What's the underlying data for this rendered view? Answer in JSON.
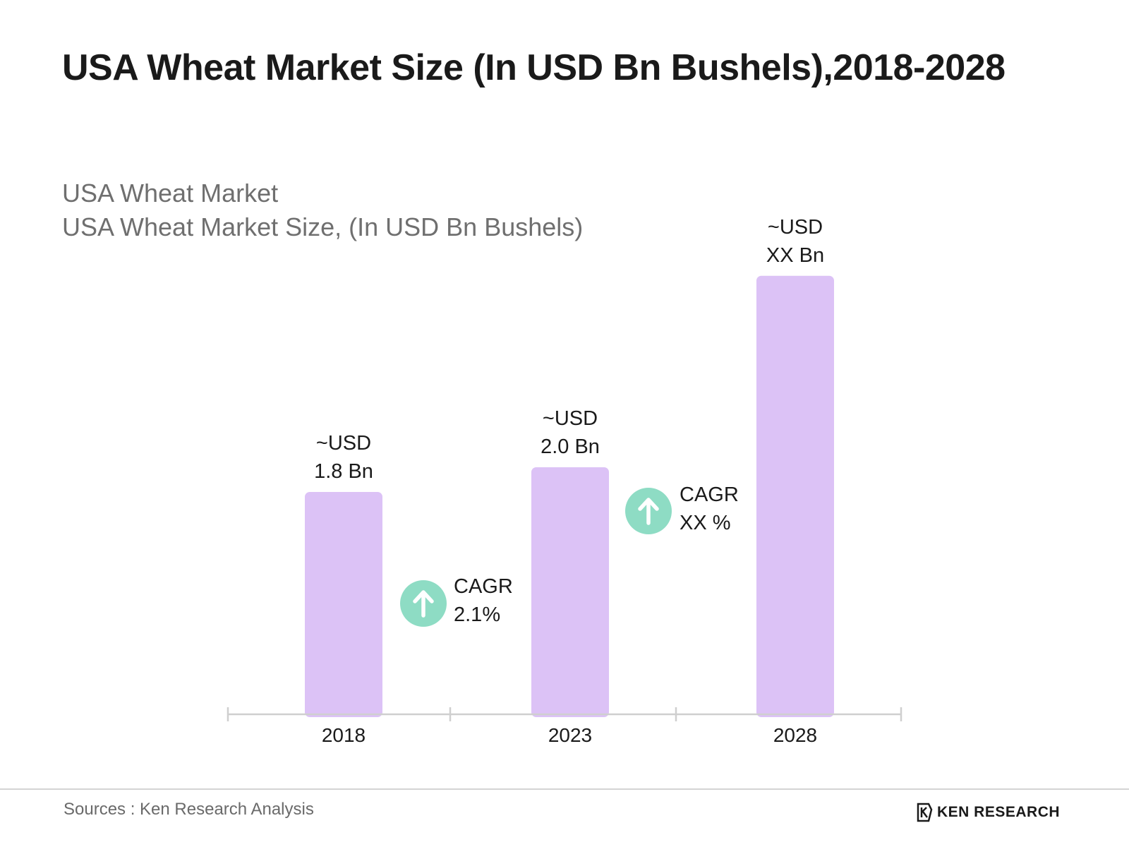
{
  "header": {
    "title": "USA Wheat Market Size (In USD Bn Bushels),2018-2028",
    "subtitle_line1": "USA Wheat Market",
    "subtitle_line2": "USA Wheat Market Size, (In USD Bn Bushels)"
  },
  "chart_data": {
    "type": "bar",
    "categories": [
      "2018",
      "2023",
      "2028"
    ],
    "values": [
      1.8,
      2.0,
      3.55
    ],
    "data_labels": [
      [
        "~USD",
        "1.8 Bn"
      ],
      [
        "~USD",
        "2.0 Bn"
      ],
      [
        "~USD",
        "XX Bn"
      ]
    ],
    "annotations": [
      {
        "between": [
          "2018",
          "2023"
        ],
        "label_line1": "CAGR",
        "label_line2": "2.1%",
        "icon": "arrow-up-icon"
      },
      {
        "between": [
          "2023",
          "2028"
        ],
        "label_line1": "CAGR",
        "label_line2": "XX %",
        "icon": "arrow-up-icon"
      }
    ],
    "title": "",
    "xlabel": "",
    "ylabel": "",
    "grid": false,
    "colors": {
      "bar": "#dcc2f6",
      "badge": "#8edcc4",
      "axis": "#cfcfcf",
      "label": "#1a1a1a"
    }
  },
  "footer": {
    "source": "Sources : Ken Research Analysis",
    "brand": "KEN RESEARCH",
    "brand_logo_icon": "ken-research-logo-icon"
  }
}
